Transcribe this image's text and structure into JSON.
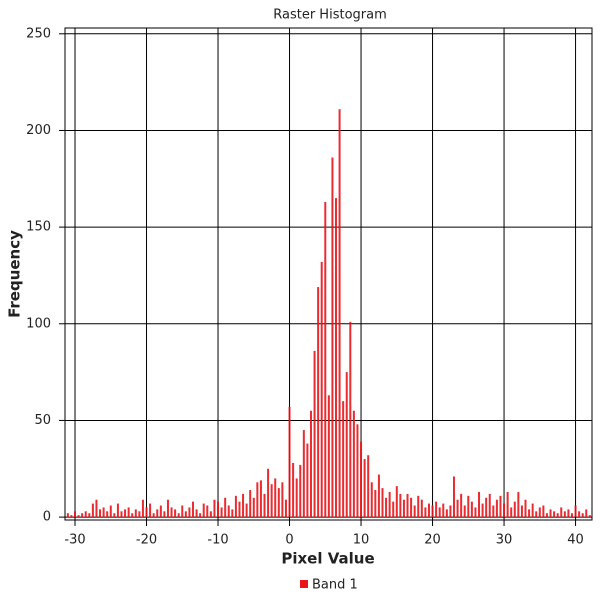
{
  "chart_data": {
    "type": "histogram",
    "title": "Raster Histogram",
    "x_label": "Pixel Value",
    "y_label": "Frequency",
    "x": [
      -31,
      -30.5,
      -30,
      -29.5,
      -29,
      -28.5,
      -28,
      -27.5,
      -27,
      -26.5,
      -26,
      -25.5,
      -25,
      -24.5,
      -24,
      -23.5,
      -23,
      -22.5,
      -22,
      -21.5,
      -21,
      -20.5,
      -20,
      -19.5,
      -19,
      -18.5,
      -18,
      -17.5,
      -17,
      -16.5,
      -16,
      -15.5,
      -15,
      -14.5,
      -14,
      -13.5,
      -13,
      -12.5,
      -12,
      -11.5,
      -11,
      -10.5,
      -10,
      -9.5,
      -9,
      -8.5,
      -8,
      -7.5,
      -7,
      -6.5,
      -6,
      -5.5,
      -5,
      -4.5,
      -4,
      -3.5,
      -3,
      -2.5,
      -2,
      -1.5,
      -1,
      -0.5,
      0,
      0.5,
      1,
      1.5,
      2,
      2.5,
      3,
      3.5,
      4,
      4.5,
      5,
      5.5,
      6,
      6.5,
      7,
      7.5,
      8,
      8.5,
      9,
      9.5,
      10,
      10.5,
      11,
      11.5,
      12,
      12.5,
      13,
      13.5,
      14,
      14.5,
      15,
      15.5,
      16,
      16.5,
      17,
      17.5,
      18,
      18.5,
      19,
      19.5,
      20,
      20.5,
      21,
      21.5,
      22,
      22.5,
      23,
      23.5,
      24,
      24.5,
      25,
      25.5,
      26,
      26.5,
      27,
      27.5,
      28,
      28.5,
      29,
      29.5,
      30,
      30.5,
      31,
      31.5,
      32,
      32.5,
      33,
      33.5,
      34,
      34.5,
      35,
      35.5,
      36,
      36.5,
      37,
      37.5,
      38,
      38.5,
      39,
      39.5,
      40,
      40.5,
      41,
      41.5,
      42
    ],
    "series": [
      {
        "name": "Band 1",
        "color": "#e8141a",
        "values": [
          2,
          1,
          3,
          1,
          2,
          3,
          2,
          7,
          9,
          4,
          5,
          3,
          6,
          2,
          7,
          3,
          4,
          5,
          2,
          4,
          3,
          9,
          5,
          7,
          2,
          4,
          6,
          3,
          9,
          5,
          4,
          2,
          6,
          3,
          5,
          8,
          4,
          2,
          7,
          6,
          3,
          9,
          8,
          5,
          10,
          6,
          4,
          11,
          8,
          12,
          7,
          14,
          10,
          18,
          19,
          12,
          25,
          17,
          20,
          15,
          18,
          9,
          57,
          28,
          20,
          27,
          45,
          38,
          55,
          86,
          119,
          132,
          163,
          63,
          186,
          165,
          211,
          60,
          75,
          101,
          55,
          48,
          39,
          30,
          32,
          18,
          14,
          22,
          15,
          10,
          13,
          8,
          16,
          12,
          9,
          12,
          10,
          6,
          11,
          9,
          5,
          7,
          6,
          8,
          5,
          7,
          4,
          6,
          21,
          9,
          12,
          6,
          11,
          8,
          5,
          13,
          7,
          10,
          12,
          6,
          9,
          11,
          7,
          13,
          5,
          8,
          13,
          6,
          9,
          4,
          7,
          3,
          5,
          6,
          2,
          4,
          3,
          2,
          5,
          3,
          4,
          2,
          6,
          3,
          2,
          4,
          1
        ]
      }
    ],
    "xlim": [
      -31.4,
      42.3
    ],
    "ylim": [
      -1.5,
      253
    ],
    "xticks": [
      -30,
      -20,
      -10,
      0,
      10,
      20,
      30,
      40
    ],
    "yticks": [
      0,
      50,
      100,
      150,
      200,
      250
    ],
    "grid": true
  }
}
